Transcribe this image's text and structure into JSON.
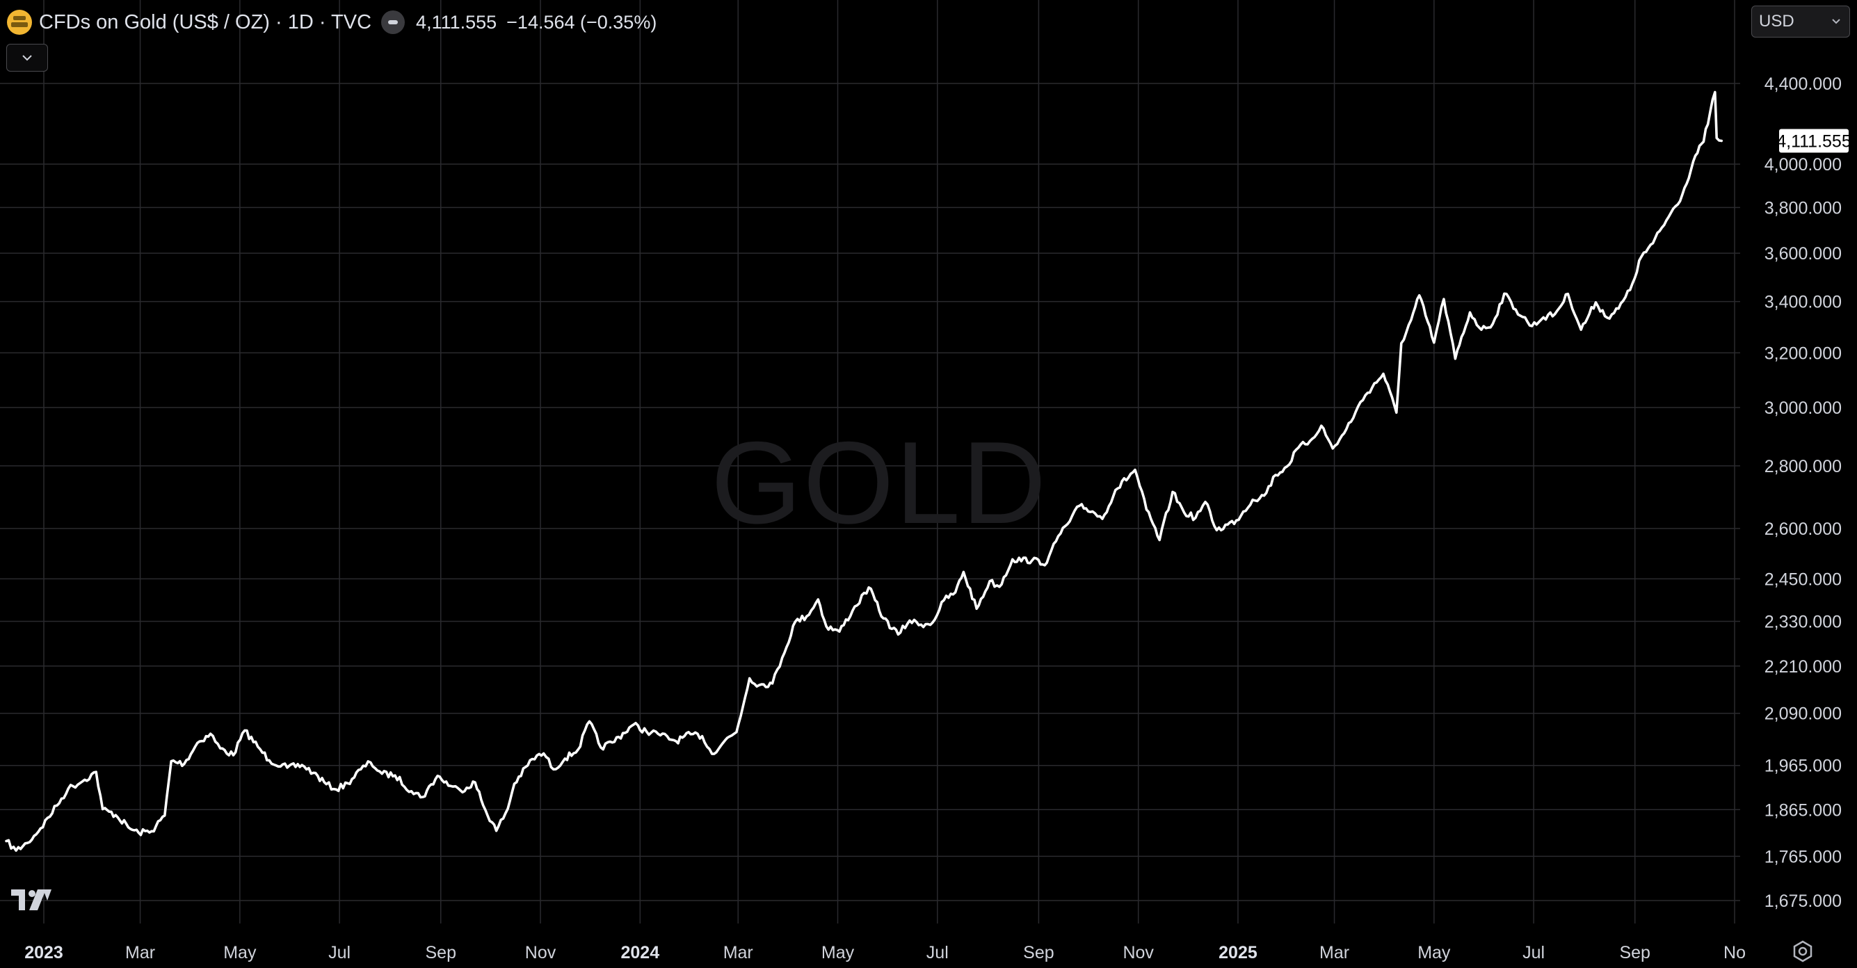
{
  "header": {
    "title": "CFDs on Gold (US$ / OZ) · 1D · TVC",
    "last_price": "4,111.555",
    "change": "−14.564 (−0.35%)"
  },
  "currency_selector": {
    "value": "USD"
  },
  "watermark": "GOLD",
  "icons": {
    "symbol": "gold-bars-icon",
    "status": "market-status-icon",
    "collapse": "chevron-down-icon",
    "currency": "chevron-down-icon",
    "logo": "tradingview-logo",
    "settings": "gear-icon"
  },
  "colors": {
    "background": "#000000",
    "line": "#ffffff",
    "grid": "#2a2a2e",
    "axis_text": "#d1d4dc",
    "symbol": "#f2b632"
  },
  "chart_data": {
    "type": "line",
    "scale": "log",
    "grid": true,
    "price_tag": "4,111.555",
    "y_ticks": [
      {
        "value": 4400,
        "label": "4,400.000"
      },
      {
        "value": 4000,
        "label": "4,000.000"
      },
      {
        "value": 3800,
        "label": "3,800.000"
      },
      {
        "value": 3600,
        "label": "3,600.000"
      },
      {
        "value": 3400,
        "label": "3,400.000"
      },
      {
        "value": 3200,
        "label": "3,200.000"
      },
      {
        "value": 3000,
        "label": "3,000.000"
      },
      {
        "value": 2800,
        "label": "2,800.000"
      },
      {
        "value": 2600,
        "label": "2,600.000"
      },
      {
        "value": 2450,
        "label": "2,450.000"
      },
      {
        "value": 2330,
        "label": "2,330.000"
      },
      {
        "value": 2210,
        "label": "2,210.000"
      },
      {
        "value": 2090,
        "label": "2,090.000"
      },
      {
        "value": 1965,
        "label": "1,965.000"
      },
      {
        "value": 1865,
        "label": "1,865.000"
      },
      {
        "value": 1765,
        "label": "1,765.000"
      },
      {
        "value": 1675,
        "label": "1,675.000"
      }
    ],
    "x_ticks": [
      {
        "date": "2023-01-01",
        "label": "2023",
        "year": true
      },
      {
        "date": "2023-03-01",
        "label": "Mar"
      },
      {
        "date": "2023-05-01",
        "label": "May"
      },
      {
        "date": "2023-07-01",
        "label": "Jul"
      },
      {
        "date": "2023-09-01",
        "label": "Sep"
      },
      {
        "date": "2023-11-01",
        "label": "Nov"
      },
      {
        "date": "2024-01-01",
        "label": "2024",
        "year": true
      },
      {
        "date": "2024-03-01",
        "label": "Mar"
      },
      {
        "date": "2024-05-01",
        "label": "May"
      },
      {
        "date": "2024-07-01",
        "label": "Jul"
      },
      {
        "date": "2024-09-01",
        "label": "Sep"
      },
      {
        "date": "2024-11-01",
        "label": "Nov"
      },
      {
        "date": "2025-01-01",
        "label": "2025",
        "year": true
      },
      {
        "date": "2025-03-01",
        "label": "Mar"
      },
      {
        "date": "2025-05-01",
        "label": "May"
      },
      {
        "date": "2025-07-01",
        "label": "Jul"
      },
      {
        "date": "2025-09-01",
        "label": "Sep"
      },
      {
        "date": "2025-11-01",
        "label": "No"
      }
    ],
    "series": [
      {
        "points": [
          [
            "2022-12-09",
            1797
          ],
          [
            "2022-12-15",
            1777
          ],
          [
            "2022-12-22",
            1793
          ],
          [
            "2022-12-30",
            1824
          ],
          [
            "2023-01-09",
            1874
          ],
          [
            "2023-01-16",
            1912
          ],
          [
            "2023-01-26",
            1932
          ],
          [
            "2023-02-02",
            1950
          ],
          [
            "2023-02-06",
            1866
          ],
          [
            "2023-02-14",
            1853
          ],
          [
            "2023-02-23",
            1823
          ],
          [
            "2023-02-28",
            1815
          ],
          [
            "2023-03-08",
            1818
          ],
          [
            "2023-03-16",
            1852
          ],
          [
            "2023-03-20",
            1975
          ],
          [
            "2023-03-28",
            1969
          ],
          [
            "2023-04-05",
            2018
          ],
          [
            "2023-04-13",
            2040
          ],
          [
            "2023-04-19",
            2005
          ],
          [
            "2023-04-27",
            1989
          ],
          [
            "2023-05-04",
            2048
          ],
          [
            "2023-05-12",
            2009
          ],
          [
            "2023-05-19",
            1977
          ],
          [
            "2023-05-30",
            1960
          ],
          [
            "2023-06-08",
            1966
          ],
          [
            "2023-06-15",
            1948
          ],
          [
            "2023-06-23",
            1922
          ],
          [
            "2023-06-29",
            1910
          ],
          [
            "2023-07-06",
            1924
          ],
          [
            "2023-07-14",
            1956
          ],
          [
            "2023-07-20",
            1972
          ],
          [
            "2023-07-27",
            1946
          ],
          [
            "2023-08-04",
            1942
          ],
          [
            "2023-08-14",
            1906
          ],
          [
            "2023-08-21",
            1893
          ],
          [
            "2023-08-30",
            1941
          ],
          [
            "2023-09-07",
            1918
          ],
          [
            "2023-09-13",
            1908
          ],
          [
            "2023-09-22",
            1926
          ],
          [
            "2023-09-27",
            1874
          ],
          [
            "2023-10-05",
            1819
          ],
          [
            "2023-10-12",
            1867
          ],
          [
            "2023-10-16",
            1923
          ],
          [
            "2023-10-27",
            1980
          ],
          [
            "2023-11-03",
            1993
          ],
          [
            "2023-11-09",
            1956
          ],
          [
            "2023-11-16",
            1981
          ],
          [
            "2023-11-24",
            2002
          ],
          [
            "2023-12-01",
            2070
          ],
          [
            "2023-12-08",
            2007
          ],
          [
            "2023-12-15",
            2019
          ],
          [
            "2023-12-28",
            2062
          ],
          [
            "2024-01-05",
            2045
          ],
          [
            "2024-01-12",
            2040
          ],
          [
            "2024-01-23",
            2022
          ],
          [
            "2024-02-01",
            2039
          ],
          [
            "2024-02-08",
            2034
          ],
          [
            "2024-02-14",
            1992
          ],
          [
            "2024-02-22",
            2024
          ],
          [
            "2024-02-29",
            2044
          ],
          [
            "2024-03-08",
            2178
          ],
          [
            "2024-03-14",
            2161
          ],
          [
            "2024-03-22",
            2165
          ],
          [
            "2024-03-28",
            2232
          ],
          [
            "2024-04-05",
            2329
          ],
          [
            "2024-04-12",
            2344
          ],
          [
            "2024-04-19",
            2391
          ],
          [
            "2024-04-24",
            2316
          ],
          [
            "2024-05-02",
            2302
          ],
          [
            "2024-05-10",
            2359
          ],
          [
            "2024-05-20",
            2425
          ],
          [
            "2024-05-29",
            2338
          ],
          [
            "2024-06-07",
            2294
          ],
          [
            "2024-06-14",
            2332
          ],
          [
            "2024-06-21",
            2321
          ],
          [
            "2024-06-28",
            2326
          ],
          [
            "2024-07-05",
            2389
          ],
          [
            "2024-07-12",
            2411
          ],
          [
            "2024-07-17",
            2470
          ],
          [
            "2024-07-25",
            2365
          ],
          [
            "2024-08-02",
            2443
          ],
          [
            "2024-08-08",
            2427
          ],
          [
            "2024-08-16",
            2507
          ],
          [
            "2024-08-28",
            2504
          ],
          [
            "2024-09-06",
            2497
          ],
          [
            "2024-09-13",
            2577
          ],
          [
            "2024-09-20",
            2622
          ],
          [
            "2024-09-26",
            2671
          ],
          [
            "2024-10-04",
            2653
          ],
          [
            "2024-10-10",
            2630
          ],
          [
            "2024-10-18",
            2721
          ],
          [
            "2024-10-30",
            2787
          ],
          [
            "2024-11-06",
            2659
          ],
          [
            "2024-11-14",
            2565
          ],
          [
            "2024-11-22",
            2715
          ],
          [
            "2024-11-29",
            2650
          ],
          [
            "2024-12-06",
            2633
          ],
          [
            "2024-12-12",
            2683
          ],
          [
            "2024-12-19",
            2595
          ],
          [
            "2024-12-31",
            2625
          ],
          [
            "2025-01-10",
            2690
          ],
          [
            "2025-01-17",
            2703
          ],
          [
            "2025-01-24",
            2770
          ],
          [
            "2025-01-31",
            2798
          ],
          [
            "2025-02-07",
            2861
          ],
          [
            "2025-02-14",
            2883
          ],
          [
            "2025-02-21",
            2936
          ],
          [
            "2025-02-28",
            2858
          ],
          [
            "2025-03-07",
            2910
          ],
          [
            "2025-03-14",
            2984
          ],
          [
            "2025-03-20",
            3044
          ],
          [
            "2025-03-31",
            3122
          ],
          [
            "2025-04-08",
            2982
          ],
          [
            "2025-04-11",
            3237
          ],
          [
            "2025-04-17",
            3327
          ],
          [
            "2025-04-22",
            3425
          ],
          [
            "2025-05-01",
            3239
          ],
          [
            "2025-05-07",
            3410
          ],
          [
            "2025-05-14",
            3178
          ],
          [
            "2025-05-23",
            3357
          ],
          [
            "2025-05-30",
            3289
          ],
          [
            "2025-06-06",
            3312
          ],
          [
            "2025-06-13",
            3432
          ],
          [
            "2025-06-20",
            3368
          ],
          [
            "2025-06-30",
            3303
          ],
          [
            "2025-07-07",
            3337
          ],
          [
            "2025-07-14",
            3350
          ],
          [
            "2025-07-22",
            3431
          ],
          [
            "2025-07-30",
            3289
          ],
          [
            "2025-08-08",
            3397
          ],
          [
            "2025-08-15",
            3336
          ],
          [
            "2025-08-22",
            3372
          ],
          [
            "2025-08-29",
            3447
          ],
          [
            "2025-09-05",
            3586
          ],
          [
            "2025-09-12",
            3643
          ],
          [
            "2025-09-23",
            3776
          ],
          [
            "2025-09-30",
            3858
          ],
          [
            "2025-10-08",
            4040
          ],
          [
            "2025-10-13",
            4107
          ],
          [
            "2025-10-17",
            4252
          ],
          [
            "2025-10-20",
            4355
          ],
          [
            "2025-10-21",
            4125
          ],
          [
            "2025-10-24",
            4111.555
          ]
        ]
      }
    ]
  }
}
